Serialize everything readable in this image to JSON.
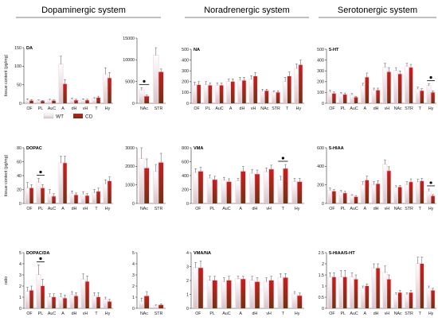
{
  "figure": {
    "section_titles": [
      "Dopaminergic system",
      "Noradrenergic system",
      "Serotonergic system"
    ],
    "legend": [
      {
        "label": "WT",
        "color": "#d9c9cc"
      },
      {
        "label": "CD",
        "color": "#8b3a1a"
      }
    ],
    "colors": {
      "wt_top": "#ffffff",
      "wt_bottom": "#d6c4c8",
      "cd_top": "#c81e1e",
      "cd_bottom": "#6e3312",
      "halo": "#f6c9dd"
    }
  },
  "chart_data": [
    {
      "id": "da",
      "type": "bar",
      "label": "DA",
      "ylabel": "tissue content (pg/mg)",
      "categories": [
        "OF",
        "PL",
        "AuC",
        "A",
        "dH",
        "vH",
        "T",
        "Hy"
      ],
      "ylim": [
        0,
        150
      ],
      "yticks": [
        0,
        50,
        100,
        150
      ],
      "series": [
        {
          "name": "WT",
          "values": [
            8,
            7,
            8,
            105,
            10,
            9,
            12,
            78
          ],
          "errors": [
            4,
            2,
            3,
            22,
            4,
            3,
            3,
            18
          ]
        },
        {
          "name": "CD",
          "values": [
            7,
            6,
            7,
            52,
            8,
            8,
            15,
            68
          ],
          "errors": [
            3,
            2,
            2,
            12,
            3,
            3,
            4,
            15
          ]
        }
      ],
      "significant": []
    },
    {
      "id": "da_str",
      "type": "bar",
      "label": "",
      "categories": [
        "NAc",
        "STR"
      ],
      "ylim": [
        0,
        15000
      ],
      "yticks": [
        0,
        5000,
        10000,
        15000
      ],
      "series": [
        {
          "name": "WT",
          "values": [
            3000,
            11000
          ],
          "errors": [
            600,
            1800
          ]
        },
        {
          "name": "CD",
          "values": [
            1600,
            7200
          ],
          "errors": [
            300,
            700
          ]
        }
      ],
      "significant": [
        "NAc"
      ]
    },
    {
      "id": "na",
      "type": "bar",
      "label": "NA",
      "categories": [
        "OF",
        "PL",
        "AuC",
        "A",
        "dH",
        "vH",
        "NAc",
        "STR",
        "T",
        "Hy"
      ],
      "ylim": [
        0,
        500
      ],
      "yticks": [
        0,
        100,
        200,
        300,
        400,
        500
      ],
      "series": [
        {
          "name": "WT",
          "values": [
            165,
            170,
            165,
            200,
            210,
            220,
            110,
            100,
            200,
            320
          ],
          "errors": [
            30,
            30,
            25,
            25,
            30,
            35,
            20,
            15,
            40,
            45
          ]
        },
        {
          "name": "CD",
          "values": [
            170,
            165,
            165,
            200,
            210,
            250,
            115,
            100,
            250,
            355
          ],
          "errors": [
            30,
            25,
            25,
            25,
            30,
            35,
            15,
            15,
            40,
            45
          ]
        }
      ],
      "significant": []
    },
    {
      "id": "ht5",
      "type": "bar",
      "label": "5-HT",
      "categories": [
        "OF",
        "PL",
        "AuC",
        "A",
        "dH",
        "vH",
        "NAc",
        "STR",
        "T",
        "Hy"
      ],
      "ylim": [
        0,
        500
      ],
      "yticks": [
        0,
        100,
        200,
        300,
        400,
        500
      ],
      "series": [
        {
          "name": "WT",
          "values": [
            100,
            85,
            75,
            160,
            120,
            330,
            300,
            340,
            130,
            160
          ],
          "errors": [
            20,
            15,
            15,
            25,
            20,
            40,
            30,
            30,
            20,
            20
          ]
        },
        {
          "name": "CD",
          "values": [
            90,
            80,
            55,
            240,
            120,
            290,
            270,
            330,
            115,
            100
          ],
          "errors": [
            15,
            15,
            10,
            40,
            20,
            40,
            30,
            30,
            20,
            15
          ]
        }
      ],
      "significant": [
        "Hy"
      ]
    },
    {
      "id": "dopac",
      "type": "bar",
      "label": "DOPAC",
      "ylabel": "tissue content (pg/mg)",
      "categories": [
        "OF",
        "PL",
        "AuC",
        "A",
        "dH",
        "vH",
        "T",
        "Hy"
      ],
      "ylim": [
        0,
        80
      ],
      "yticks": [
        0,
        20,
        40,
        60,
        80
      ],
      "series": [
        {
          "name": "WT",
          "values": [
            22,
            30,
            14,
            58,
            14,
            13,
            15,
            28
          ],
          "errors": [
            8,
            6,
            6,
            10,
            4,
            4,
            5,
            6
          ]
        },
        {
          "name": "CD",
          "values": [
            22,
            22,
            10,
            58,
            12,
            11,
            17,
            32
          ],
          "errors": [
            5,
            5,
            4,
            10,
            3,
            3,
            5,
            6
          ]
        }
      ],
      "significant": [
        "PL"
      ]
    },
    {
      "id": "dopac_str",
      "type": "bar",
      "label": "",
      "categories": [
        "NAc",
        "STR"
      ],
      "ylim": [
        0,
        3000
      ],
      "yticks": [
        0,
        1000,
        2000,
        3000
      ],
      "series": [
        {
          "name": "WT",
          "values": [
            2400,
            1700
          ],
          "errors": [
            600,
            400
          ]
        },
        {
          "name": "CD",
          "values": [
            1900,
            2200
          ],
          "errors": [
            500,
            500
          ]
        }
      ],
      "significant": []
    },
    {
      "id": "vma",
      "type": "bar",
      "label": "VMA",
      "categories": [
        "OF",
        "PL",
        "AuC",
        "A",
        "dH",
        "vH",
        "T",
        "Hy"
      ],
      "ylim": [
        0,
        800
      ],
      "yticks": [
        0,
        200,
        400,
        600,
        800
      ],
      "series": [
        {
          "name": "WT",
          "values": [
            440,
            360,
            330,
            320,
            430,
            450,
            330,
            310
          ],
          "errors": [
            60,
            50,
            45,
            40,
            60,
            60,
            60,
            50
          ]
        },
        {
          "name": "CD",
          "values": [
            460,
            340,
            310,
            460,
            420,
            490,
            500,
            310
          ],
          "errors": [
            60,
            50,
            45,
            70,
            60,
            60,
            60,
            50
          ]
        }
      ],
      "significant": [
        "T"
      ]
    },
    {
      "id": "hiaa",
      "type": "bar",
      "label": "5-HIAA",
      "categories": [
        "OF",
        "PL",
        "AuC",
        "A",
        "dH",
        "vH",
        "NAc",
        "STR",
        "T",
        "Hy"
      ],
      "ylim": [
        0,
        600
      ],
      "yticks": [
        0,
        200,
        400,
        600
      ],
      "series": [
        {
          "name": "WT",
          "values": [
            140,
            120,
            80,
            200,
            200,
            420,
            170,
            200,
            230,
            130
          ],
          "errors": [
            25,
            20,
            15,
            35,
            35,
            50,
            20,
            35,
            30,
            25
          ]
        },
        {
          "name": "CD",
          "values": [
            130,
            110,
            70,
            250,
            210,
            350,
            175,
            230,
            240,
            80
          ],
          "errors": [
            20,
            20,
            15,
            45,
            35,
            45,
            20,
            35,
            30,
            15
          ]
        }
      ],
      "significant": [
        "Hy"
      ]
    },
    {
      "id": "dopac_da",
      "type": "bar",
      "label": "DOPAC/DA",
      "ylabel": "ratio",
      "categories": [
        "OF",
        "PL",
        "AuC",
        "A",
        "dH",
        "vH",
        "T",
        "Hy"
      ],
      "ylim": [
        0,
        5
      ],
      "yticks": [
        0,
        1,
        2,
        3,
        4,
        5
      ],
      "series": [
        {
          "name": "WT",
          "values": [
            1.5,
            3.0,
            1.0,
            1.0,
            1.2,
            2.6,
            1.1,
            0.8
          ],
          "errors": [
            0.4,
            0.9,
            0.3,
            0.3,
            0.3,
            0.5,
            0.3,
            0.2
          ]
        },
        {
          "name": "CD",
          "values": [
            1.6,
            2.0,
            1.0,
            0.9,
            1.1,
            2.4,
            1.0,
            0.6
          ],
          "errors": [
            0.4,
            0.6,
            0.3,
            0.3,
            0.3,
            0.5,
            0.4,
            0.2
          ]
        }
      ],
      "significant": [
        "PL"
      ]
    },
    {
      "id": "dopac_da_str",
      "type": "bar",
      "label": "",
      "categories": [
        "NAc",
        "STR"
      ],
      "ylim": [
        0,
        5
      ],
      "yticks": [
        0,
        1,
        2,
        3,
        4,
        5
      ],
      "series": [
        {
          "name": "WT",
          "values": [
            0.6,
            0.2
          ],
          "errors": [
            0.3,
            0.1
          ]
        },
        {
          "name": "CD",
          "values": [
            1.1,
            0.3
          ],
          "errors": [
            0.4,
            0.1
          ]
        }
      ],
      "significant": []
    },
    {
      "id": "vma_na",
      "type": "bar",
      "label": "VMA/NA",
      "categories": [
        "OF",
        "PL",
        "AuC",
        "A",
        "dH",
        "vH",
        "T",
        "Hy"
      ],
      "ylim": [
        0,
        4
      ],
      "yticks": [
        0,
        1,
        2,
        3,
        4
      ],
      "series": [
        {
          "name": "WT",
          "values": [
            2.9,
            2.0,
            1.9,
            2.1,
            2.0,
            1.9,
            2.2,
            1.0
          ],
          "errors": [
            0.4,
            0.3,
            0.3,
            0.2,
            0.3,
            0.3,
            0.3,
            0.2
          ]
        },
        {
          "name": "CD",
          "values": [
            2.9,
            2.0,
            2.0,
            2.1,
            1.9,
            2.0,
            2.2,
            0.9
          ],
          "errors": [
            0.5,
            0.3,
            0.3,
            0.2,
            0.3,
            0.3,
            0.3,
            0.2
          ]
        }
      ],
      "significant": []
    },
    {
      "id": "hiaa_ht",
      "type": "bar",
      "label": "5-HIAA/5-HT",
      "categories": [
        "OF",
        "PL",
        "AuC",
        "A",
        "dH",
        "vH",
        "NAc",
        "STR",
        "T",
        "Hy"
      ],
      "ylim": [
        0,
        2.5
      ],
      "yticks": [
        0,
        0.5,
        1.0,
        1.5,
        2.0,
        2.5
      ],
      "series": [
        {
          "name": "WT",
          "values": [
            1.4,
            1.4,
            1.4,
            0.9,
            1.8,
            1.6,
            0.6,
            0.6,
            2.0,
            0.9
          ],
          "errors": [
            0.2,
            0.3,
            0.2,
            0.1,
            0.2,
            0.3,
            0.1,
            0.1,
            0.3,
            0.1
          ]
        },
        {
          "name": "CD",
          "values": [
            1.4,
            1.4,
            1.3,
            1.0,
            1.8,
            1.3,
            0.7,
            0.7,
            2.0,
            0.8
          ],
          "errors": [
            0.2,
            0.3,
            0.2,
            0.1,
            0.2,
            0.2,
            0.1,
            0.1,
            0.3,
            0.1
          ]
        }
      ],
      "significant": []
    }
  ]
}
